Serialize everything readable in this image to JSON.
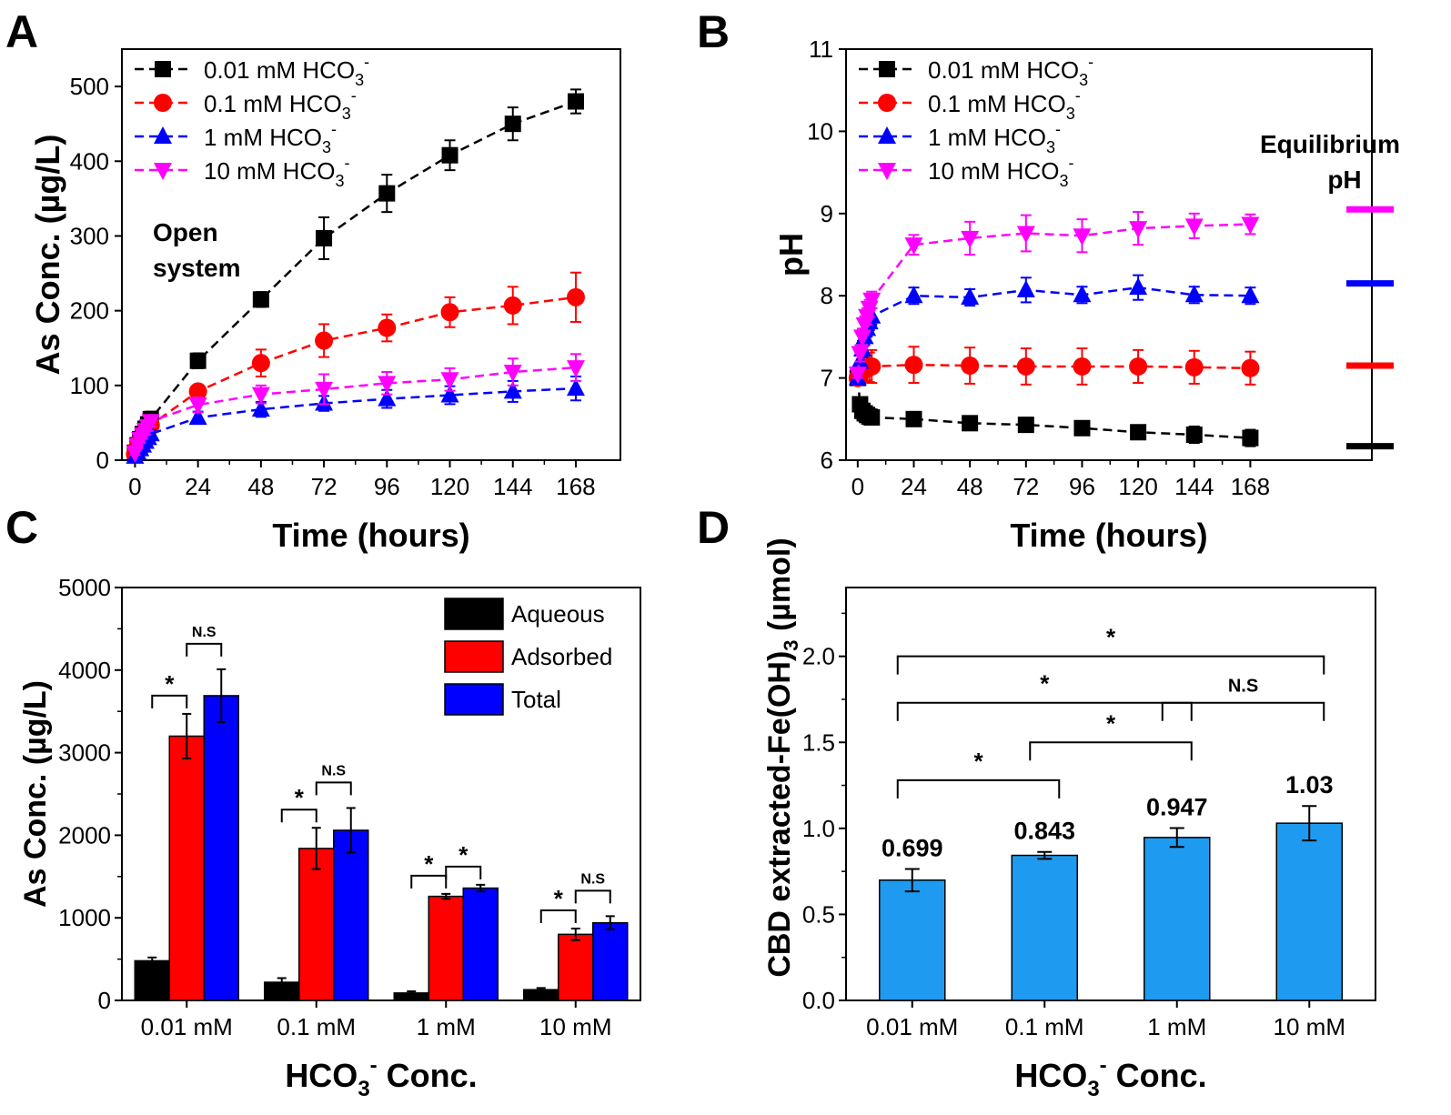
{
  "chart_data": [
    {
      "panel": "A",
      "type": "line",
      "xlabel": "Time (hours)",
      "ylabel": "As Conc. (µg/L)",
      "xlim": [
        -5,
        185
      ],
      "ylim": [
        0,
        550
      ],
      "xticks": [
        0,
        24,
        48,
        72,
        96,
        120,
        144,
        168
      ],
      "yticks": [
        0,
        100,
        200,
        300,
        400,
        500
      ],
      "annotation": [
        "Open",
        "system"
      ],
      "legend_position": "top-left",
      "series": [
        {
          "name": "0.01 mM HCO3-",
          "color": "#000000",
          "marker": "square",
          "x": [
            0,
            1,
            2,
            3,
            4,
            5,
            6,
            24,
            48,
            72,
            96,
            120,
            144,
            168
          ],
          "y": [
            10,
            20,
            28,
            35,
            42,
            48,
            55,
            133,
            215,
            297,
            357,
            408,
            450,
            480
          ],
          "err": [
            3,
            4,
            5,
            5,
            6,
            6,
            10,
            10,
            10,
            28,
            25,
            20,
            22,
            16
          ]
        },
        {
          "name": "0.1 mM HCO3-",
          "color": "#ff0000",
          "marker": "circle",
          "x": [
            0,
            1,
            2,
            3,
            4,
            5,
            6,
            24,
            48,
            72,
            96,
            120,
            144,
            168
          ],
          "y": [
            8,
            18,
            25,
            32,
            38,
            42,
            47,
            92,
            130,
            160,
            177,
            198,
            207,
            218
          ],
          "err": [
            3,
            4,
            4,
            5,
            5,
            6,
            6,
            8,
            18,
            22,
            18,
            20,
            25,
            33
          ]
        },
        {
          "name": "1 mM HCO3-",
          "color": "#0000ff",
          "marker": "triangle-up",
          "x": [
            0,
            1,
            2,
            3,
            4,
            5,
            6,
            24,
            48,
            72,
            96,
            120,
            144,
            168
          ],
          "y": [
            5,
            10,
            15,
            20,
            25,
            30,
            35,
            57,
            68,
            76,
            82,
            87,
            92,
            96
          ],
          "err": [
            3,
            3,
            3,
            4,
            4,
            4,
            5,
            8,
            10,
            10,
            12,
            12,
            14,
            16
          ]
        },
        {
          "name": "10 mM HCO3-",
          "color": "#ff00ff",
          "marker": "triangle-down",
          "x": [
            0,
            1,
            2,
            3,
            4,
            5,
            6,
            24,
            48,
            72,
            96,
            120,
            144,
            168
          ],
          "y": [
            10,
            20,
            28,
            34,
            40,
            45,
            52,
            74,
            88,
            95,
            103,
            108,
            118,
            124
          ],
          "err": [
            3,
            4,
            5,
            5,
            6,
            6,
            7,
            10,
            12,
            20,
            15,
            15,
            18,
            18
          ]
        }
      ]
    },
    {
      "panel": "B",
      "type": "line",
      "xlabel": "Time (hours)",
      "ylabel": "pH",
      "xlim": [
        -5,
        220
      ],
      "ylim": [
        6,
        11
      ],
      "xticks": [
        0,
        24,
        48,
        72,
        96,
        120,
        144,
        168
      ],
      "yticks": [
        6,
        7,
        8,
        9,
        10,
        11
      ],
      "annotation": [
        "Equilibrium",
        "pH"
      ],
      "legend_position": "top-left",
      "equilibrium_ph": [
        {
          "color": "#ff00ff",
          "value": 9.05
        },
        {
          "color": "#0000ff",
          "value": 8.15
        },
        {
          "color": "#ff0000",
          "value": 7.15
        },
        {
          "color": "#000000",
          "value": 6.17
        }
      ],
      "series": [
        {
          "name": "0.01 mM HCO3-",
          "color": "#000000",
          "marker": "square",
          "x": [
            0,
            1,
            2,
            3,
            4,
            5,
            6,
            24,
            48,
            72,
            96,
            120,
            144,
            168
          ],
          "y": [
            7.0,
            6.68,
            6.6,
            6.57,
            6.55,
            6.53,
            6.52,
            6.5,
            6.45,
            6.43,
            6.39,
            6.34,
            6.31,
            6.27
          ],
          "err": [
            0.03,
            0.05,
            0.05,
            0.05,
            0.05,
            0.05,
            0.05,
            0.05,
            0.05,
            0.05,
            0.07,
            0.07,
            0.1,
            0.1
          ]
        },
        {
          "name": "0.1 mM HCO3-",
          "color": "#ff0000",
          "marker": "circle",
          "x": [
            0,
            1,
            2,
            3,
            4,
            5,
            6,
            24,
            48,
            72,
            96,
            120,
            144,
            168
          ],
          "y": [
            7.0,
            7.05,
            7.08,
            7.1,
            7.12,
            7.13,
            7.14,
            7.16,
            7.15,
            7.14,
            7.14,
            7.14,
            7.13,
            7.12
          ],
          "err": [
            0.05,
            0.1,
            0.12,
            0.15,
            0.15,
            0.18,
            0.2,
            0.22,
            0.22,
            0.22,
            0.22,
            0.2,
            0.2,
            0.2
          ]
        },
        {
          "name": "1 mM HCO3-",
          "color": "#0000ff",
          "marker": "triangle-up",
          "x": [
            0,
            1,
            2,
            3,
            4,
            5,
            6,
            24,
            48,
            72,
            96,
            120,
            144,
            168
          ],
          "y": [
            7.0,
            7.2,
            7.35,
            7.5,
            7.6,
            7.68,
            7.75,
            8.0,
            7.98,
            8.07,
            8.01,
            8.1,
            8.01,
            8.0
          ],
          "err": [
            0.05,
            0.08,
            0.1,
            0.1,
            0.1,
            0.1,
            0.1,
            0.1,
            0.1,
            0.15,
            0.1,
            0.15,
            0.1,
            0.1
          ]
        },
        {
          "name": "10 mM HCO3-",
          "color": "#ff00ff",
          "marker": "triangle-down",
          "x": [
            0,
            1,
            2,
            3,
            4,
            5,
            6,
            24,
            48,
            72,
            96,
            120,
            144,
            168
          ],
          "y": [
            7.05,
            7.3,
            7.5,
            7.65,
            7.75,
            7.85,
            7.95,
            8.62,
            8.7,
            8.76,
            8.73,
            8.82,
            8.85,
            8.87
          ],
          "err": [
            0.05,
            0.1,
            0.1,
            0.1,
            0.1,
            0.1,
            0.1,
            0.12,
            0.2,
            0.22,
            0.2,
            0.2,
            0.15,
            0.12
          ]
        }
      ]
    },
    {
      "panel": "C",
      "type": "bar",
      "xlabel_parts": [
        "HCO",
        "3",
        "-",
        " Conc."
      ],
      "ylabel": "As Conc. (µg/L)",
      "ylim": [
        0,
        5000
      ],
      "yticks": [
        0,
        1000,
        2000,
        3000,
        4000,
        5000
      ],
      "categories": [
        "0.01 mM",
        "0.1 mM",
        "1 mM",
        "10 mM"
      ],
      "legend_position": "top-right",
      "series": [
        {
          "name": "Aqueous",
          "color": "#000000",
          "values": [
            480,
            220,
            90,
            130
          ],
          "err": [
            40,
            50,
            20,
            20
          ]
        },
        {
          "name": "Adsorbed",
          "color": "#ff0000",
          "values": [
            3200,
            1840,
            1260,
            800
          ],
          "err": [
            270,
            250,
            30,
            70
          ]
        },
        {
          "name": "Total",
          "color": "#0000ff",
          "values": [
            3690,
            2060,
            1360,
            940
          ],
          "err": [
            320,
            270,
            40,
            80
          ]
        }
      ],
      "significance": [
        {
          "category": 0,
          "from": 0,
          "to": 1,
          "label": "*"
        },
        {
          "category": 0,
          "from": 1,
          "to": 2,
          "label": "N.S"
        },
        {
          "category": 1,
          "from": 0,
          "to": 1,
          "label": "*"
        },
        {
          "category": 1,
          "from": 1,
          "to": 2,
          "label": "N.S"
        },
        {
          "category": 2,
          "from": 0,
          "to": 1,
          "label": "*"
        },
        {
          "category": 2,
          "from": 1,
          "to": 2,
          "label": "*"
        },
        {
          "category": 3,
          "from": 0,
          "to": 1,
          "label": "*"
        },
        {
          "category": 3,
          "from": 1,
          "to": 2,
          "label": "N.S"
        }
      ]
    },
    {
      "panel": "D",
      "type": "bar",
      "xlabel_parts": [
        "HCO",
        "3",
        "-",
        " Conc."
      ],
      "ylabel_parts": [
        "CBD extracted-Fe(OH)",
        "3",
        " (µmol)"
      ],
      "ylim": [
        0,
        2.4
      ],
      "yticks": [
        "0.0",
        "0.5",
        "1.0",
        "1.5",
        "2.0"
      ],
      "categories": [
        "0.01 mM",
        "0.1 mM",
        "1 mM",
        "10 mM"
      ],
      "bar_color": "#1e9bf0",
      "values": [
        0.699,
        0.843,
        0.947,
        1.03
      ],
      "value_labels": [
        "0.699",
        "0.843",
        "0.947",
        "1.03"
      ],
      "err": [
        0.065,
        0.02,
        0.055,
        0.1
      ],
      "significance": [
        {
          "from": 0,
          "to": 1,
          "label": "*"
        },
        {
          "from": 1,
          "to": 2,
          "label": "*"
        },
        {
          "from": 2,
          "to": 3,
          "label": "N.S"
        },
        {
          "from": 0,
          "to": 2,
          "label": "*"
        },
        {
          "from": 0,
          "to": 3,
          "label": "*"
        }
      ]
    }
  ]
}
